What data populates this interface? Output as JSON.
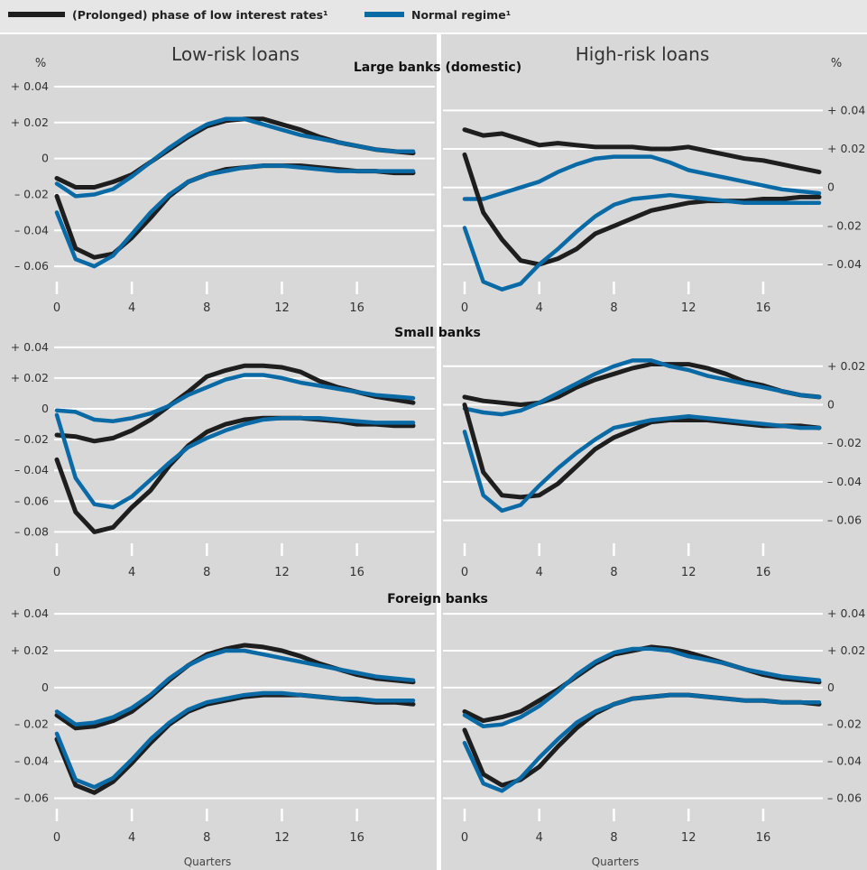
{
  "legend": {
    "entries": [
      {
        "label": "(Prolonged) phase of low interest rates¹",
        "color": "#1e1e1e"
      },
      {
        "label": "Normal regime¹",
        "color": "#0a6aa6"
      }
    ]
  },
  "column_titles": [
    "Low-risk loans",
    "High-risk loans"
  ],
  "row_titles": [
    "Large banks (domestic)",
    "Small banks",
    "Foreign banks"
  ],
  "x_axis_title": "Quarters",
  "colors": {
    "low_rate": "#1e1e1e",
    "normal": "#0a6aa6",
    "panel_bg": "#d8d8d8",
    "grid": "#ffffff"
  },
  "chart_data": [
    {
      "type": "line",
      "title": "Low-risk loans",
      "subtitle": "Large banks (domestic)",
      "unit": "%",
      "xlabel": "",
      "x": [
        0,
        1,
        2,
        3,
        4,
        5,
        6,
        7,
        8,
        9,
        10,
        11,
        12,
        13,
        14,
        15,
        16,
        17,
        18,
        19
      ],
      "xlim": [
        0,
        19
      ],
      "xticks": [
        0,
        4,
        8,
        12,
        16
      ],
      "ylim": [
        -0.075,
        0.046
      ],
      "yticks": [
        0.04,
        0.02,
        0,
        -0.02,
        -0.04,
        -0.06
      ],
      "ytick_labels": [
        "+ 0.04",
        "+ 0.02",
        "0",
        "– 0.02",
        "– 0.04",
        "– 0.06"
      ],
      "grid": true,
      "series": [
        {
          "name": "(Prolonged) phase of low interest rates¹",
          "color": "#1e1e1e",
          "values": [
            -0.011,
            -0.016,
            -0.016,
            -0.013,
            -0.009,
            -0.002,
            0.005,
            0.012,
            0.018,
            0.021,
            0.022,
            0.022,
            0.019,
            0.016,
            0.012,
            0.009,
            0.007,
            0.005,
            0.004,
            0.003
          ]
        },
        {
          "name": "Normal regime¹",
          "color": "#0a6aa6",
          "values": [
            -0.014,
            -0.021,
            -0.02,
            -0.017,
            -0.01,
            -0.002,
            0.006,
            0.013,
            0.019,
            0.022,
            0.022,
            0.019,
            0.016,
            0.013,
            0.011,
            0.009,
            0.007,
            0.005,
            0.004,
            0.004
          ]
        },
        {
          "name": "(Prolonged) phase of low interest rates¹",
          "color": "#1e1e1e",
          "values": [
            -0.021,
            -0.05,
            -0.055,
            -0.053,
            -0.044,
            -0.033,
            -0.021,
            -0.013,
            -0.009,
            -0.006,
            -0.005,
            -0.004,
            -0.004,
            -0.004,
            -0.005,
            -0.006,
            -0.007,
            -0.007,
            -0.008,
            -0.008
          ]
        },
        {
          "name": "Normal regime¹",
          "color": "#0a6aa6",
          "values": [
            -0.03,
            -0.056,
            -0.06,
            -0.054,
            -0.042,
            -0.03,
            -0.02,
            -0.013,
            -0.009,
            -0.007,
            -0.005,
            -0.004,
            -0.004,
            -0.005,
            -0.006,
            -0.007,
            -0.007,
            -0.007,
            -0.007,
            -0.007
          ]
        }
      ]
    },
    {
      "type": "line",
      "title": "High-risk loans",
      "subtitle": "Large banks (domestic)",
      "unit": "%",
      "xlabel": "",
      "x": [
        0,
        1,
        2,
        3,
        4,
        5,
        6,
        7,
        8,
        9,
        10,
        11,
        12,
        13,
        14,
        15,
        16,
        17,
        18,
        19
      ],
      "xlim": [
        0,
        19
      ],
      "xticks": [
        0,
        4,
        8,
        12,
        16
      ],
      "ylim": [
        -0.055,
        0.058
      ],
      "yticks": [
        0.04,
        0.02,
        0,
        -0.02,
        -0.04
      ],
      "ytick_labels": [
        "+ 0.04",
        "+ 0.02",
        "0",
        "– 0.02",
        "– 0.04"
      ],
      "grid": true,
      "series": [
        {
          "name": "(Prolonged) phase of low interest rates¹",
          "color": "#1e1e1e",
          "values": [
            0.03,
            0.027,
            0.028,
            0.025,
            0.022,
            0.023,
            0.022,
            0.021,
            0.021,
            0.021,
            0.02,
            0.02,
            0.021,
            0.019,
            0.017,
            0.015,
            0.014,
            0.012,
            0.01,
            0.008
          ]
        },
        {
          "name": "Normal regime¹",
          "color": "#0a6aa6",
          "values": [
            -0.006,
            -0.006,
            -0.003,
            0.0,
            0.003,
            0.008,
            0.012,
            0.015,
            0.016,
            0.016,
            0.016,
            0.013,
            0.009,
            0.007,
            0.005,
            0.003,
            0.001,
            -0.001,
            -0.002,
            -0.003
          ]
        },
        {
          "name": "(Prolonged) phase of low interest rates¹",
          "color": "#1e1e1e",
          "values": [
            0.017,
            -0.013,
            -0.027,
            -0.038,
            -0.04,
            -0.037,
            -0.032,
            -0.024,
            -0.02,
            -0.016,
            -0.012,
            -0.01,
            -0.008,
            -0.007,
            -0.007,
            -0.007,
            -0.006,
            -0.006,
            -0.005,
            -0.005
          ]
        },
        {
          "name": "Normal regime¹",
          "color": "#0a6aa6",
          "values": [
            -0.021,
            -0.049,
            -0.053,
            -0.05,
            -0.04,
            -0.032,
            -0.023,
            -0.015,
            -0.009,
            -0.006,
            -0.005,
            -0.004,
            -0.005,
            -0.006,
            -0.007,
            -0.008,
            -0.008,
            -0.008,
            -0.008,
            -0.008
          ]
        }
      ]
    },
    {
      "type": "line",
      "title": "Low-risk loans",
      "subtitle": "Small banks",
      "unit": "",
      "xlabel": "",
      "x": [
        0,
        1,
        2,
        3,
        4,
        5,
        6,
        7,
        8,
        9,
        10,
        11,
        12,
        13,
        14,
        15,
        16,
        17,
        18,
        19
      ],
      "xlim": [
        0,
        19
      ],
      "xticks": [
        0,
        4,
        8,
        12,
        16
      ],
      "ylim": [
        -0.095,
        0.044
      ],
      "yticks": [
        0.04,
        0.02,
        0,
        -0.02,
        -0.04,
        -0.06,
        -0.08
      ],
      "ytick_labels": [
        "+ 0.04",
        "+ 0.02",
        "0",
        "– 0.02",
        "– 0.04",
        "– 0.06",
        "– 0.08"
      ],
      "grid": true,
      "series": [
        {
          "name": "(Prolonged) phase of low interest rates¹",
          "color": "#1e1e1e",
          "values": [
            -0.017,
            -0.018,
            -0.021,
            -0.019,
            -0.014,
            -0.007,
            0.002,
            0.011,
            0.021,
            0.025,
            0.028,
            0.028,
            0.027,
            0.024,
            0.018,
            0.014,
            0.011,
            0.008,
            0.006,
            0.004
          ]
        },
        {
          "name": "Normal regime¹",
          "color": "#0a6aa6",
          "values": [
            -0.001,
            -0.002,
            -0.007,
            -0.008,
            -0.006,
            -0.003,
            0.002,
            0.009,
            0.014,
            0.019,
            0.022,
            0.022,
            0.02,
            0.017,
            0.015,
            0.013,
            0.011,
            0.009,
            0.008,
            0.007
          ]
        },
        {
          "name": "(Prolonged) phase of low interest rates¹",
          "color": "#1e1e1e",
          "values": [
            -0.033,
            -0.067,
            -0.08,
            -0.077,
            -0.064,
            -0.053,
            -0.037,
            -0.024,
            -0.015,
            -0.01,
            -0.007,
            -0.006,
            -0.006,
            -0.006,
            -0.007,
            -0.008,
            -0.01,
            -0.01,
            -0.011,
            -0.011
          ]
        },
        {
          "name": "Normal regime¹",
          "color": "#0a6aa6",
          "values": [
            -0.004,
            -0.045,
            -0.062,
            -0.064,
            -0.057,
            -0.046,
            -0.035,
            -0.025,
            -0.019,
            -0.014,
            -0.01,
            -0.007,
            -0.006,
            -0.006,
            -0.006,
            -0.007,
            -0.008,
            -0.009,
            -0.009,
            -0.009
          ]
        }
      ]
    },
    {
      "type": "line",
      "title": "High-risk loans",
      "subtitle": "Small banks",
      "unit": "",
      "xlabel": "",
      "x": [
        0,
        1,
        2,
        3,
        4,
        5,
        6,
        7,
        8,
        9,
        10,
        11,
        12,
        13,
        14,
        15,
        16,
        17,
        18,
        19
      ],
      "xlim": [
        0,
        19
      ],
      "xticks": [
        0,
        4,
        8,
        12,
        16
      ],
      "ylim": [
        -0.078,
        0.033
      ],
      "yticks": [
        0.02,
        0,
        -0.02,
        -0.04,
        -0.06
      ],
      "ytick_labels": [
        "+ 0.02",
        "0",
        "– 0.02",
        "– 0.04",
        "– 0.06"
      ],
      "grid": true,
      "series": [
        {
          "name": "(Prolonged) phase of low interest rates¹",
          "color": "#1e1e1e",
          "values": [
            0.004,
            0.002,
            0.001,
            0.0,
            0.001,
            0.004,
            0.009,
            0.013,
            0.016,
            0.019,
            0.021,
            0.021,
            0.021,
            0.019,
            0.016,
            0.012,
            0.01,
            0.007,
            0.005,
            0.004
          ]
        },
        {
          "name": "Normal regime¹",
          "color": "#0a6aa6",
          "values": [
            -0.002,
            -0.004,
            -0.005,
            -0.003,
            0.001,
            0.006,
            0.011,
            0.016,
            0.02,
            0.023,
            0.023,
            0.02,
            0.018,
            0.015,
            0.013,
            0.011,
            0.009,
            0.007,
            0.005,
            0.004
          ]
        },
        {
          "name": "(Prolonged) phase of low interest rates¹",
          "color": "#1e1e1e",
          "values": [
            0.0,
            -0.035,
            -0.047,
            -0.048,
            -0.047,
            -0.041,
            -0.032,
            -0.023,
            -0.017,
            -0.013,
            -0.009,
            -0.008,
            -0.008,
            -0.008,
            -0.009,
            -0.01,
            -0.011,
            -0.011,
            -0.011,
            -0.012
          ]
        },
        {
          "name": "Normal regime¹",
          "color": "#0a6aa6",
          "values": [
            -0.014,
            -0.047,
            -0.055,
            -0.052,
            -0.042,
            -0.033,
            -0.025,
            -0.018,
            -0.012,
            -0.01,
            -0.008,
            -0.007,
            -0.006,
            -0.007,
            -0.008,
            -0.009,
            -0.01,
            -0.011,
            -0.012,
            -0.012
          ]
        }
      ]
    },
    {
      "type": "line",
      "title": "Low-risk loans",
      "subtitle": "Foreign banks",
      "unit": "",
      "xlabel": "Quarters",
      "x": [
        0,
        1,
        2,
        3,
        4,
        5,
        6,
        7,
        8,
        9,
        10,
        11,
        12,
        13,
        14,
        15,
        16,
        17,
        18,
        19
      ],
      "xlim": [
        0,
        19
      ],
      "xticks": [
        0,
        4,
        8,
        12,
        16
      ],
      "ylim": [
        -0.073,
        0.044
      ],
      "yticks": [
        0.04,
        0.02,
        0,
        -0.02,
        -0.04,
        -0.06
      ],
      "ytick_labels": [
        "+ 0.04",
        "+ 0.02",
        "0",
        "– 0.02",
        "– 0.04",
        "– 0.06"
      ],
      "grid": true,
      "series": [
        {
          "name": "(Prolonged) phase of low interest rates¹",
          "color": "#1e1e1e",
          "values": [
            -0.015,
            -0.022,
            -0.021,
            -0.018,
            -0.013,
            -0.005,
            0.004,
            0.012,
            0.018,
            0.021,
            0.023,
            0.022,
            0.02,
            0.017,
            0.013,
            0.01,
            0.007,
            0.005,
            0.004,
            0.003
          ]
        },
        {
          "name": "Normal regime¹",
          "color": "#0a6aa6",
          "values": [
            -0.013,
            -0.02,
            -0.019,
            -0.016,
            -0.011,
            -0.004,
            0.005,
            0.012,
            0.017,
            0.02,
            0.02,
            0.018,
            0.016,
            0.014,
            0.012,
            0.01,
            0.008,
            0.006,
            0.005,
            0.004
          ]
        },
        {
          "name": "(Prolonged) phase of low interest rates¹",
          "color": "#1e1e1e",
          "values": [
            -0.028,
            -0.053,
            -0.057,
            -0.051,
            -0.041,
            -0.03,
            -0.02,
            -0.013,
            -0.009,
            -0.007,
            -0.005,
            -0.004,
            -0.004,
            -0.004,
            -0.005,
            -0.006,
            -0.007,
            -0.008,
            -0.008,
            -0.009
          ]
        },
        {
          "name": "Normal regime¹",
          "color": "#0a6aa6",
          "values": [
            -0.025,
            -0.05,
            -0.054,
            -0.049,
            -0.039,
            -0.028,
            -0.019,
            -0.012,
            -0.008,
            -0.006,
            -0.004,
            -0.003,
            -0.003,
            -0.004,
            -0.005,
            -0.006,
            -0.006,
            -0.007,
            -0.007,
            -0.007
          ]
        }
      ]
    },
    {
      "type": "line",
      "title": "High-risk loans",
      "subtitle": "Foreign banks",
      "unit": "",
      "xlabel": "Quarters",
      "x": [
        0,
        1,
        2,
        3,
        4,
        5,
        6,
        7,
        8,
        9,
        10,
        11,
        12,
        13,
        14,
        15,
        16,
        17,
        18,
        19
      ],
      "xlim": [
        0,
        19
      ],
      "xticks": [
        0,
        4,
        8,
        12,
        16
      ],
      "ylim": [
        -0.073,
        0.044
      ],
      "yticks": [
        0.04,
        0.02,
        0,
        -0.02,
        -0.04,
        -0.06
      ],
      "ytick_labels": [
        "+ 0.04",
        "+ 0.02",
        "0",
        "– 0.02",
        "– 0.04",
        "– 0.06"
      ],
      "grid": true,
      "series": [
        {
          "name": "(Prolonged) phase of low interest rates¹",
          "color": "#1e1e1e",
          "values": [
            -0.013,
            -0.018,
            -0.016,
            -0.013,
            -0.007,
            -0.001,
            0.006,
            0.013,
            0.018,
            0.02,
            0.022,
            0.021,
            0.019,
            0.016,
            0.013,
            0.01,
            0.007,
            0.005,
            0.004,
            0.003
          ]
        },
        {
          "name": "Normal regime¹",
          "color": "#0a6aa6",
          "values": [
            -0.015,
            -0.021,
            -0.02,
            -0.016,
            -0.01,
            -0.002,
            0.007,
            0.014,
            0.019,
            0.021,
            0.021,
            0.02,
            0.017,
            0.015,
            0.013,
            0.01,
            0.008,
            0.006,
            0.005,
            0.004
          ]
        },
        {
          "name": "(Prolonged) phase of low interest rates¹",
          "color": "#1e1e1e",
          "values": [
            -0.023,
            -0.047,
            -0.053,
            -0.05,
            -0.043,
            -0.032,
            -0.022,
            -0.014,
            -0.009,
            -0.006,
            -0.005,
            -0.004,
            -0.004,
            -0.005,
            -0.006,
            -0.007,
            -0.007,
            -0.008,
            -0.008,
            -0.009
          ]
        },
        {
          "name": "Normal regime¹",
          "color": "#0a6aa6",
          "values": [
            -0.03,
            -0.052,
            -0.056,
            -0.049,
            -0.038,
            -0.028,
            -0.019,
            -0.013,
            -0.009,
            -0.006,
            -0.005,
            -0.004,
            -0.004,
            -0.005,
            -0.006,
            -0.007,
            -0.007,
            -0.008,
            -0.008,
            -0.008
          ]
        }
      ]
    }
  ]
}
